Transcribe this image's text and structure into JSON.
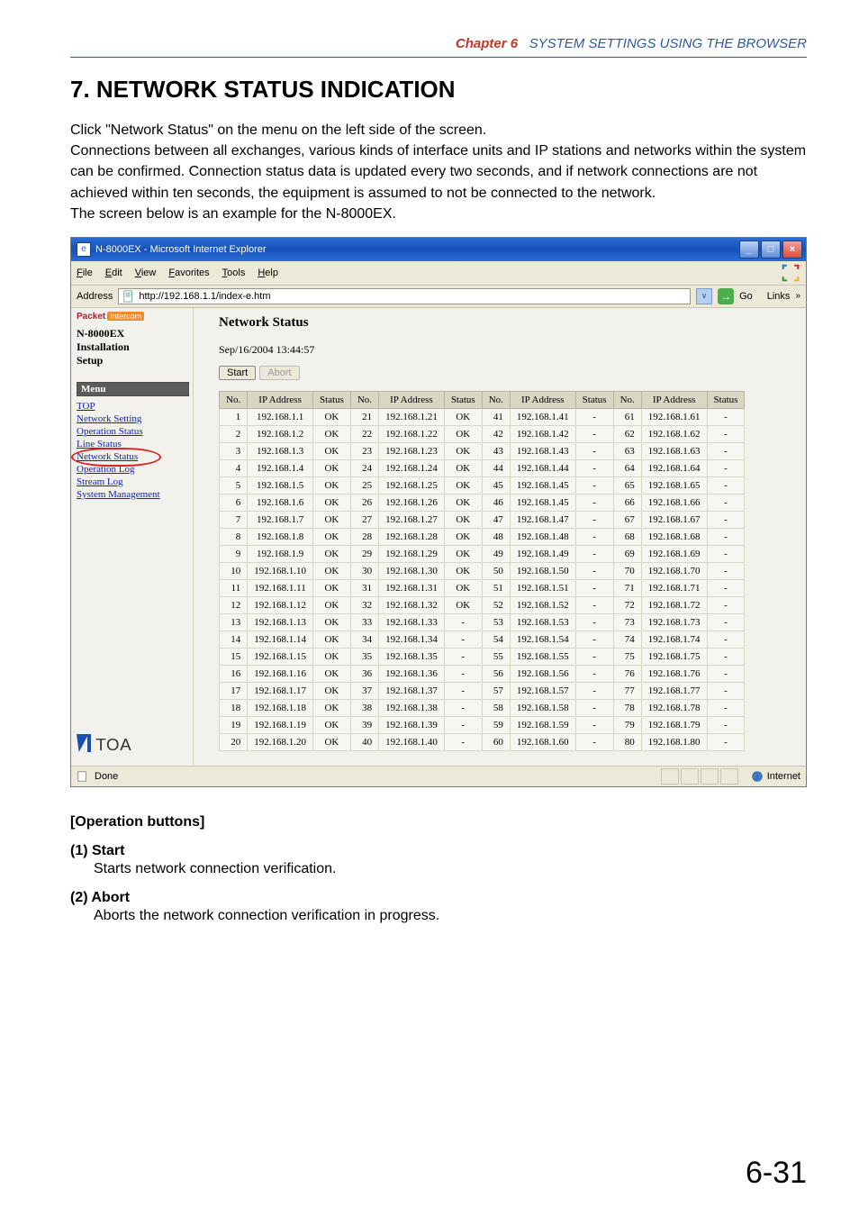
{
  "chapter": {
    "red": "Chapter 6",
    "blue": "SYSTEM SETTINGS USING THE BROWSER"
  },
  "section_title": "7. NETWORK STATUS INDICATION",
  "intro": "Click \"Network Status\" on the menu on the left side of the screen.\nConnections between all exchanges, various kinds of interface units and IP stations and networks within the system can be confirmed. Connection status data is updated every two seconds, and if network connections are not achieved within ten seconds, the equipment is assumed to not be connected to the network.\nThe screen below is an example for the N-8000EX.",
  "window": {
    "title": "N-8000EX - Microsoft Internet Explorer",
    "menubar": [
      "File",
      "Edit",
      "View",
      "Favorites",
      "Tools",
      "Help"
    ],
    "address_label": "Address",
    "address_url": "http://192.168.1.1/index-e.htm",
    "go_label": "Go",
    "links_label": "Links",
    "status_done": "Done",
    "status_zone": "Internet"
  },
  "sidebar": {
    "brand_left": "Packet",
    "brand_right": "Intercom",
    "model_lines": [
      "N-8000EX",
      "Installation",
      "Setup"
    ],
    "menu_header": "Menu",
    "menu_items": [
      "TOP",
      "Network Setting",
      "Operation Status",
      "Line Status",
      "Network Status",
      "Operation Log",
      "Stream Log",
      "System Management"
    ],
    "circled_index": 4,
    "toa": "TOA"
  },
  "main": {
    "title": "Network Status",
    "datetime": "Sep/16/2004 13:44:57",
    "btn_start": "Start",
    "btn_abort": "Abort",
    "columns": [
      "No.",
      "IP Address",
      "Status"
    ],
    "col_count": 4,
    "rows_per_col": 20,
    "ip_prefix": "192.168.1.",
    "status_ok": "OK",
    "status_dash": "-",
    "ok_max": 32,
    "ip_overrides": {
      "46": "192.168.1.45"
    }
  },
  "below": {
    "header": "[Operation buttons]",
    "items": [
      {
        "num": "(1)",
        "name": "Start",
        "desc": "Starts network connection verification."
      },
      {
        "num": "(2)",
        "name": "Abort",
        "desc": "Aborts the network connection verification in progress."
      }
    ]
  },
  "page_number": "6-31"
}
